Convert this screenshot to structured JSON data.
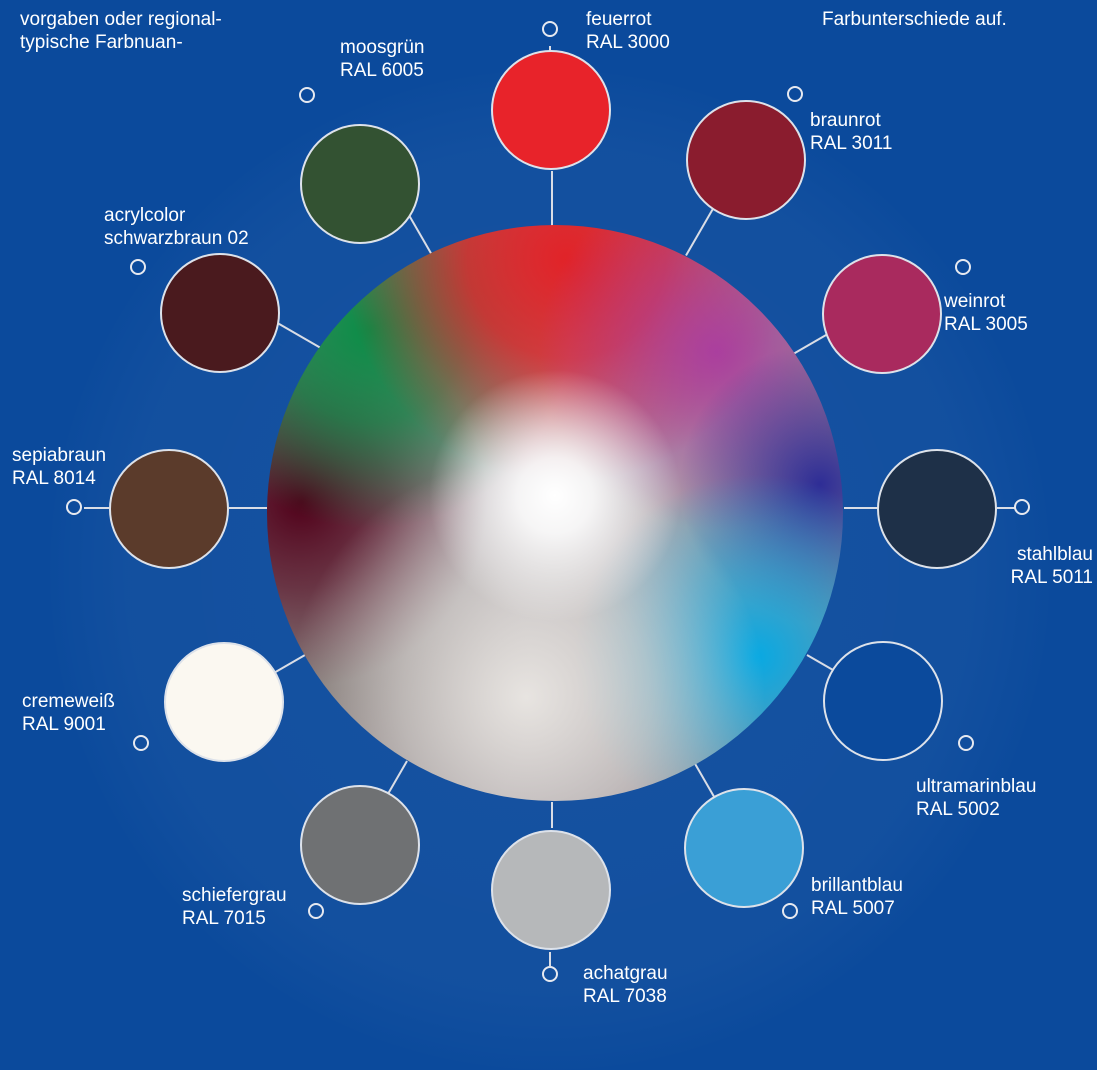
{
  "intro_left": {
    "line1": "vorgaben oder regional-",
    "line2": "typische  Farbnuan-"
  },
  "intro_right": {
    "line1": "Farbunterschiede auf."
  },
  "colors": {
    "feuerrot": "#e8232a",
    "braunrot": "#8a1c2e",
    "weinrot": "#a92a5e",
    "stahlblau": "#1e3048",
    "ultramarinblau": "#0b4a9c",
    "brillantblau": "#3a9fd6",
    "achatgrau": "#b6b8ba",
    "schiefergrau": "#6f7173",
    "cremeweiss": "#fbf8f1",
    "sepiabraun": "#5b3b2b",
    "schwarzbraun": "#4a1a1e",
    "moosgruen": "#335232",
    "background": "#0b4a9c"
  },
  "swatches": {
    "feuerrot": {
      "name": "feuerrot",
      "code": "RAL 3000"
    },
    "braunrot": {
      "name": "braunrot",
      "code": "RAL 3011"
    },
    "weinrot": {
      "name": "weinrot",
      "code": "RAL 3005"
    },
    "stahlblau": {
      "name": "stahlblau",
      "code": "RAL 5011"
    },
    "ultramarinblau": {
      "name": "ultramarinblau",
      "code": "RAL 5002"
    },
    "brillantblau": {
      "name": "brillantblau",
      "code": "RAL 5007"
    },
    "achatgrau": {
      "name": "achatgrau",
      "code": "RAL 7038"
    },
    "schiefergrau": {
      "name": "schiefergrau",
      "code": "RAL 7015"
    },
    "cremeweiss": {
      "name": "cremeweiß",
      "code": "RAL 9001"
    },
    "sepiabraun": {
      "name": "sepiabraun",
      "code": "RAL 8014"
    },
    "schwarzbraun": {
      "name": "acrylcolor",
      "code": "schwarzbraun 02"
    },
    "moosgruen": {
      "name": "moosgrün",
      "code": "RAL 6005"
    }
  }
}
